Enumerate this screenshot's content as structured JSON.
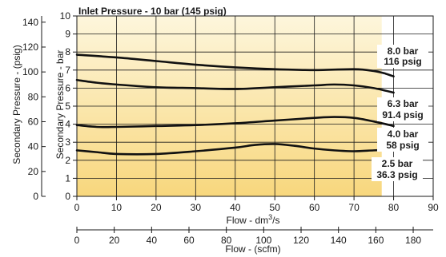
{
  "chart_data": {
    "type": "line",
    "title": "Inlet Pressure - 10 bar (145 psig)",
    "x_axis_primary": {
      "label_prefix": "Flow - dm",
      "label_sup": "3",
      "label_suffix": "/s",
      "range": [
        0,
        90
      ],
      "ticks": [
        0,
        10,
        20,
        30,
        40,
        50,
        60,
        70,
        80,
        90
      ]
    },
    "x_axis_secondary": {
      "label": "Flow - (scfm)",
      "range": [
        0,
        190.7
      ],
      "ticks": [
        0,
        20,
        40,
        60,
        80,
        100,
        120,
        140,
        160,
        180
      ]
    },
    "y_axis_primary": {
      "label": "Secondary Pressure - bar",
      "range": [
        0,
        10
      ],
      "ticks": [
        0,
        1,
        2,
        3,
        4,
        5,
        6,
        7,
        8,
        9,
        10
      ]
    },
    "y_axis_secondary": {
      "label": "Secondary Pressure - (psig)",
      "range": [
        0,
        145
      ],
      "ticks": [
        0,
        20,
        40,
        60,
        80,
        100,
        120,
        140
      ]
    },
    "grid": true,
    "fill_to_flow": 77,
    "series": [
      {
        "label_bar": "8.0 bar",
        "label_psig": "116 psig",
        "x": [
          0,
          10,
          20,
          30,
          40,
          50,
          60,
          70,
          75,
          78,
          80
        ],
        "y": [
          7.85,
          7.7,
          7.5,
          7.3,
          7.15,
          7.05,
          7.0,
          7.05,
          6.95,
          6.8,
          6.65
        ]
      },
      {
        "label_bar": "6.3 bar",
        "label_psig": "91.4 psig",
        "x": [
          0,
          5,
          10,
          20,
          30,
          40,
          50,
          60,
          65,
          70,
          75,
          80
        ],
        "y": [
          6.45,
          6.3,
          6.2,
          6.05,
          6.0,
          5.95,
          6.05,
          6.15,
          6.2,
          6.15,
          6.0,
          5.75
        ]
      },
      {
        "label_bar": "4.0 bar",
        "label_psig": "58 psig",
        "x": [
          0,
          5,
          10,
          20,
          30,
          40,
          50,
          60,
          65,
          70,
          75,
          80
        ],
        "y": [
          3.95,
          3.85,
          3.85,
          3.9,
          3.95,
          4.05,
          4.2,
          4.35,
          4.4,
          4.35,
          4.15,
          3.9
        ]
      },
      {
        "label_bar": "2.5 bar",
        "label_psig": "36.3 psig",
        "x": [
          0,
          5,
          10,
          20,
          30,
          40,
          45,
          50,
          55,
          60,
          65,
          70,
          75,
          80
        ],
        "y": [
          2.55,
          2.45,
          2.35,
          2.35,
          2.5,
          2.7,
          2.85,
          2.9,
          2.8,
          2.65,
          2.55,
          2.5,
          2.55,
          2.6
        ]
      }
    ],
    "colors": {
      "fill_top": "#fdf6dc",
      "fill_bottom": "#f8d77d",
      "grid": "#1a1a1a",
      "curve": "#111111"
    }
  }
}
